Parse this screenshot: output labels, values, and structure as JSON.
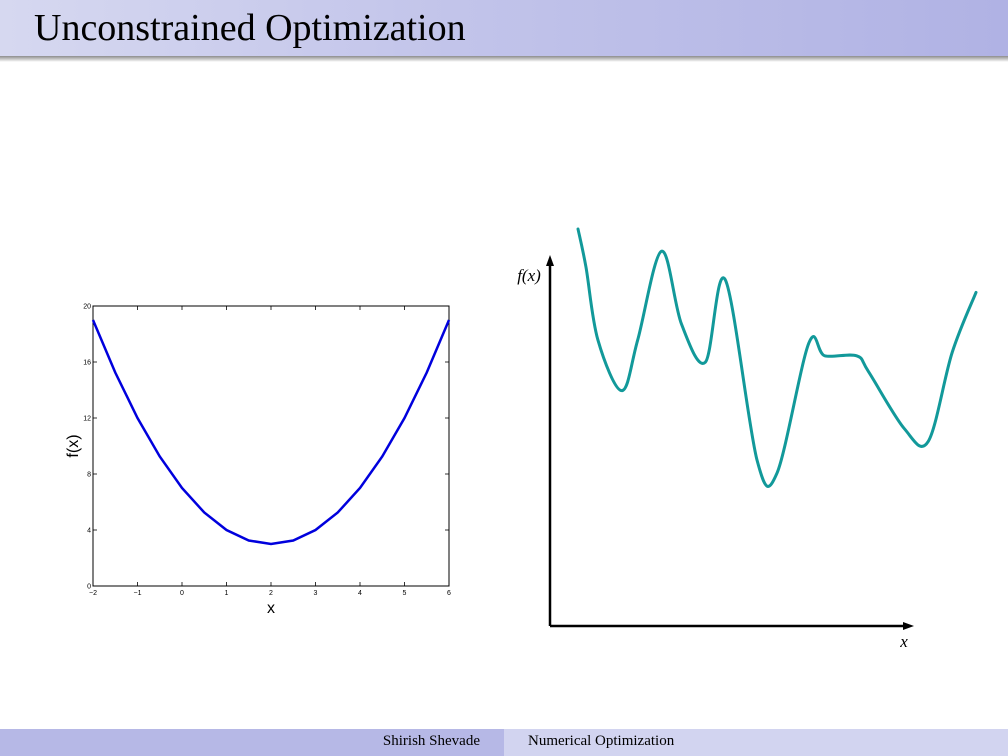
{
  "slide": {
    "title": "Unconstrained Optimization"
  },
  "footer": {
    "author": "Shirish Shevade",
    "course": "Numerical Optimization"
  },
  "colors": {
    "header_bar": "#c2c4ea",
    "footer_left": "#b6b8e6",
    "footer_right": "#d2d4f0",
    "curve_left": "#0000dd",
    "curve_right": "#12999a"
  },
  "chart_data": [
    {
      "type": "line",
      "xlabel": "x",
      "ylabel": "f(x)",
      "xlim": [
        -2,
        6
      ],
      "ylim": [
        0,
        20
      ],
      "xticks": [
        -2,
        -1,
        0,
        1,
        2,
        3,
        4,
        5,
        6
      ],
      "xtick_labels": [
        "−2",
        "−1",
        "0",
        "1",
        "2",
        "3",
        "4",
        "5",
        "6"
      ],
      "yticks": [
        0,
        4,
        8,
        12,
        16,
        20
      ],
      "ytick_labels": [
        "0",
        "4",
        "8",
        "12",
        "16",
        "20"
      ],
      "series": [
        {
          "x": [
            -2,
            -1.5,
            -1,
            -0.5,
            0,
            0.5,
            1,
            1.5,
            2,
            2.5,
            3,
            3.5,
            4,
            4.5,
            5,
            5.5,
            6
          ],
          "values": [
            19,
            15.25,
            12,
            9.25,
            7,
            5.25,
            4,
            3.25,
            3,
            3.25,
            4,
            5.25,
            7,
            9.25,
            12,
            15.25,
            19
          ]
        }
      ]
    },
    {
      "type": "line",
      "xlabel": "x",
      "ylabel": "f(x)",
      "grid": false,
      "series": [
        {
          "x": [
            0.0,
            0.02,
            0.05,
            0.11,
            0.15,
            0.21,
            0.26,
            0.32,
            0.37,
            0.45,
            0.5,
            0.58,
            0.62,
            0.7,
            0.73,
            0.82,
            0.88,
            0.94,
            1.0
          ],
          "values": [
            1.0,
            0.88,
            0.65,
            0.49,
            0.65,
            0.93,
            0.7,
            0.58,
            0.84,
            0.27,
            0.23,
            0.64,
            0.6,
            0.6,
            0.55,
            0.37,
            0.33,
            0.61,
            0.8
          ]
        }
      ]
    }
  ]
}
